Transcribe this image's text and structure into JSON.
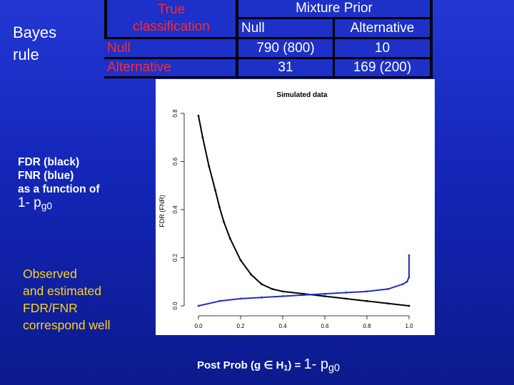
{
  "left": {
    "bayes_line1": "Bayes",
    "bayes_line2": "rule",
    "fdr_line1": "FDR (black)",
    "fdr_line2": "FNR (blue)",
    "fdr_line3": "as a function of",
    "fdr_line4_main": "1- p",
    "fdr_line4_sub": "g0",
    "obs_line1": "Observed",
    "obs_line2": "and estimated",
    "obs_line3": "FDR/FNR",
    "obs_line4": "correspond well"
  },
  "table": {
    "header_true_1": "True",
    "header_true_2": "classification",
    "header_mixture": "Mixture Prior",
    "col_null": "Null",
    "col_alternative": "Alternative",
    "row_null_label": "Null",
    "row_alt_label": "Alternative",
    "null_null": "790 (800)",
    "null_alt": "10",
    "alt_null": "31",
    "alt_alt": "169 (200)"
  },
  "colors": {
    "background": "#1426b8",
    "fdr_line": "#000000",
    "fnr_line": "#1f2fc0",
    "highlight_text": "#ffd21a",
    "table_label": "#ff2a2a"
  },
  "chart_data": {
    "type": "line",
    "title": "Simulated data",
    "ylabel": "FDR (FNR)",
    "xlabel": "",
    "xlim": [
      0.0,
      1.0
    ],
    "ylim": [
      0.0,
      0.8
    ],
    "x_ticks": [
      "0.0",
      "0.2",
      "0.4",
      "0.6",
      "0.8",
      "1.0"
    ],
    "y_ticks": [
      "0.0",
      "0.2",
      "0.4",
      "0.6",
      "0.8"
    ],
    "series": [
      {
        "color": "#000000",
        "x": [
          0.0,
          0.02,
          0.05,
          0.08,
          0.1,
          0.12,
          0.15,
          0.2,
          0.25,
          0.3,
          0.35,
          0.4,
          0.5,
          0.6,
          0.7,
          0.8,
          0.9,
          1.0
        ],
        "values": [
          0.79,
          0.7,
          0.58,
          0.48,
          0.41,
          0.35,
          0.28,
          0.19,
          0.13,
          0.09,
          0.07,
          0.06,
          0.05,
          0.04,
          0.03,
          0.02,
          0.01,
          0.0
        ]
      },
      {
        "color": "#1f2fc0",
        "x": [
          0.0,
          0.1,
          0.2,
          0.3,
          0.4,
          0.5,
          0.6,
          0.7,
          0.8,
          0.9,
          0.97,
          0.99,
          1.0,
          1.0
        ],
        "values": [
          0.0,
          0.02,
          0.03,
          0.035,
          0.04,
          0.045,
          0.05,
          0.055,
          0.06,
          0.07,
          0.09,
          0.1,
          0.12,
          0.21
        ]
      }
    ]
  },
  "bottom": {
    "label_prefix": "Post Prob (g ∈ H",
    "label_h_sub": "1",
    "label_mid": ") = ",
    "label_big": "1- p",
    "label_big_sub": "g0"
  }
}
